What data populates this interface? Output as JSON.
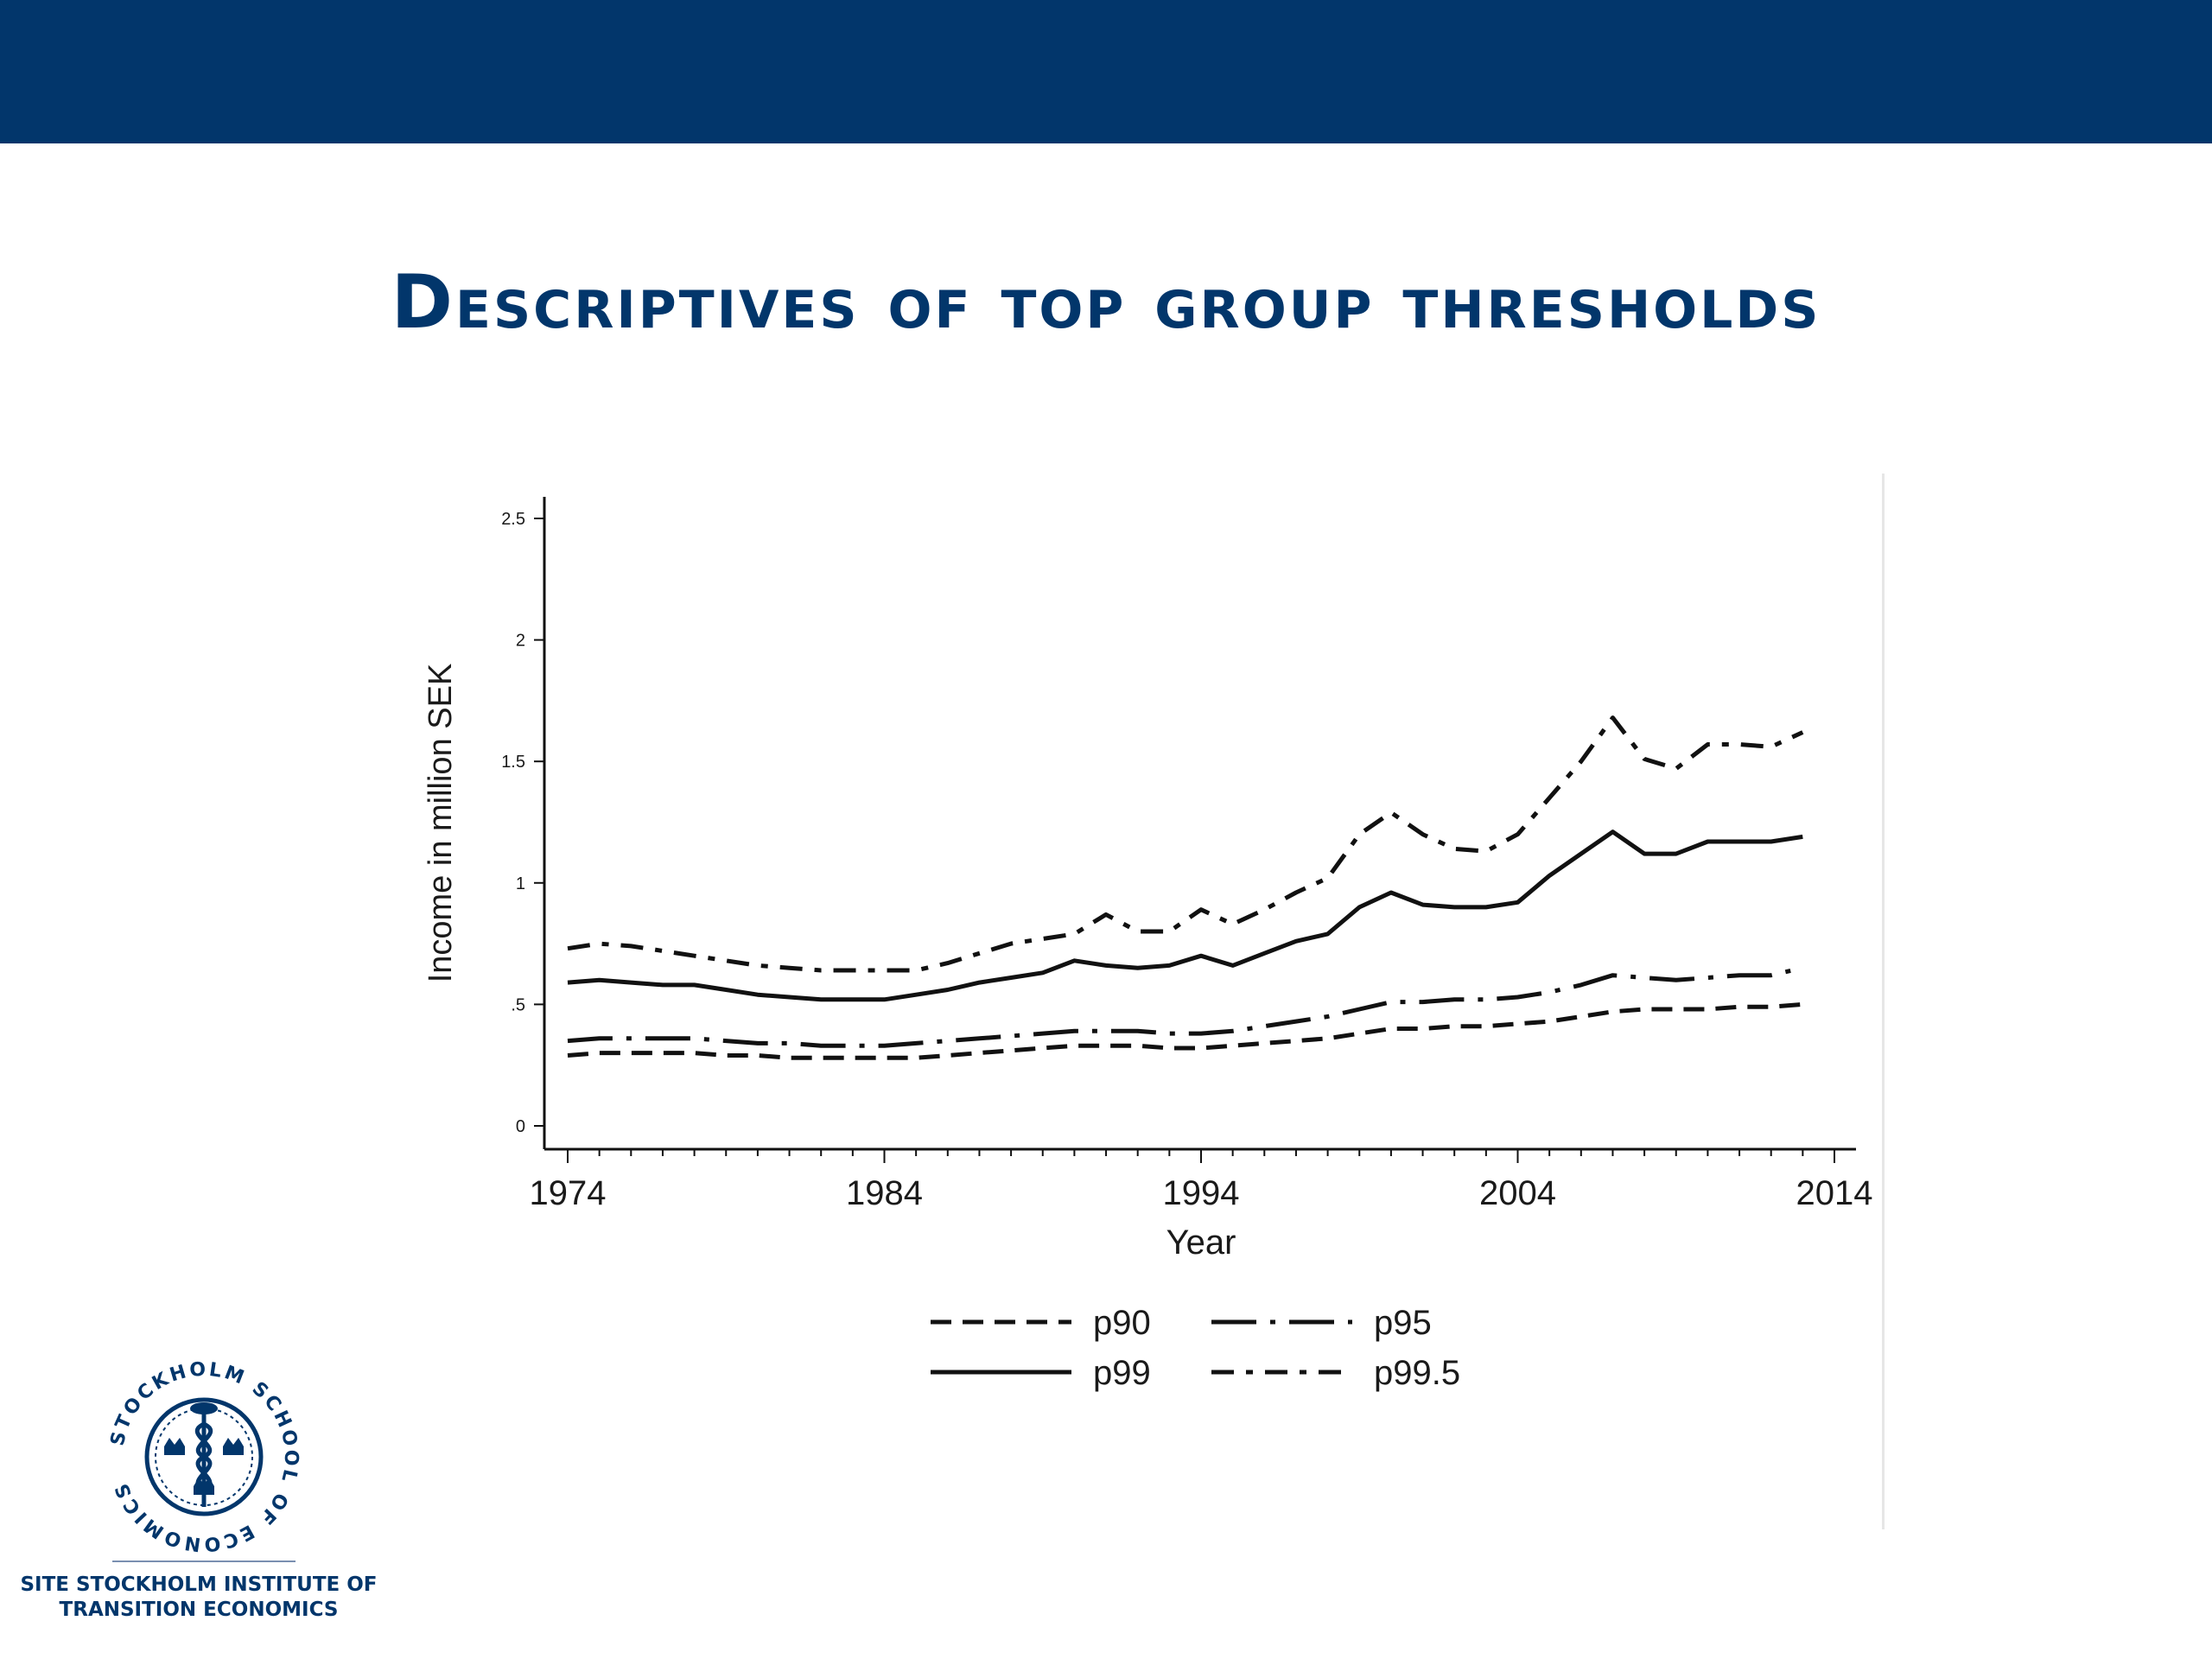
{
  "slide": {
    "title": "Descriptives of top group thresholds",
    "logo": {
      "seal_text": "STOCKHOLM SCHOOL OF ECONOMICS",
      "caption_line1": "SITE STOCKHOLM INSTITUTE OF",
      "caption_line2": "TRANSITION ECONOMICS"
    },
    "colors": {
      "bar": "#02366b",
      "title": "#02366b"
    }
  },
  "chart_data": {
    "type": "line",
    "xlabel": "Year",
    "ylabel": "Income in million SEK",
    "xlim": [
      1974,
      2014
    ],
    "ylim": [
      0,
      2.5
    ],
    "xticks": [
      1974,
      1984,
      1994,
      2004,
      2014
    ],
    "xtick_labels": [
      "1974",
      "1984",
      "1994",
      "2004",
      "2014"
    ],
    "yticks": [
      0,
      0.5,
      1,
      1.5,
      2,
      2.5
    ],
    "ytick_labels": [
      "0",
      ".5",
      "1",
      "1.5",
      "2",
      "2.5"
    ],
    "legend_position": "bottom",
    "x": [
      1974,
      1975,
      1976,
      1977,
      1978,
      1979,
      1980,
      1981,
      1982,
      1983,
      1984,
      1985,
      1986,
      1987,
      1988,
      1989,
      1990,
      1991,
      1992,
      1993,
      1994,
      1995,
      1996,
      1997,
      1998,
      1999,
      2000,
      2001,
      2002,
      2003,
      2004,
      2005,
      2006,
      2007,
      2008,
      2009,
      2010,
      2011,
      2012,
      2013
    ],
    "series": [
      {
        "name": "p90",
        "dash": "short",
        "values": [
          0.29,
          0.3,
          0.3,
          0.3,
          0.3,
          0.29,
          0.29,
          0.28,
          0.28,
          0.28,
          0.28,
          0.28,
          0.29,
          0.3,
          0.31,
          0.32,
          0.33,
          0.33,
          0.33,
          0.32,
          0.32,
          0.33,
          0.34,
          0.35,
          0.36,
          0.38,
          0.4,
          0.4,
          0.41,
          0.41,
          0.42,
          0.43,
          0.45,
          0.47,
          0.48,
          0.48,
          0.48,
          0.49,
          0.49,
          0.5
        ]
      },
      {
        "name": "p95",
        "dash": "longdot",
        "values": [
          0.35,
          0.36,
          0.36,
          0.36,
          0.36,
          0.35,
          0.34,
          0.34,
          0.33,
          0.33,
          0.33,
          0.34,
          0.35,
          0.36,
          0.37,
          0.38,
          0.39,
          0.39,
          0.39,
          0.38,
          0.38,
          0.39,
          0.41,
          0.43,
          0.45,
          0.48,
          0.51,
          0.51,
          0.52,
          0.52,
          0.53,
          0.55,
          0.58,
          0.62,
          0.61,
          0.6,
          0.61,
          0.62,
          0.62,
          0.65
        ]
      },
      {
        "name": "p99",
        "dash": "solid",
        "values": [
          0.59,
          0.6,
          0.59,
          0.58,
          0.58,
          0.56,
          0.54,
          0.53,
          0.52,
          0.52,
          0.52,
          0.54,
          0.56,
          0.59,
          0.61,
          0.63,
          0.68,
          0.66,
          0.65,
          0.66,
          0.7,
          0.66,
          0.71,
          0.76,
          0.79,
          0.9,
          0.96,
          0.91,
          0.9,
          0.9,
          0.92,
          1.03,
          1.12,
          1.21,
          1.12,
          1.12,
          1.17,
          1.17,
          1.17,
          1.19
        ]
      },
      {
        "name": "p99.5",
        "dash": "dashdot",
        "values": [
          0.73,
          0.75,
          0.74,
          0.72,
          0.7,
          0.68,
          0.66,
          0.65,
          0.64,
          0.64,
          0.64,
          0.64,
          0.67,
          0.71,
          0.75,
          0.77,
          0.79,
          0.87,
          0.8,
          0.8,
          0.89,
          0.83,
          0.89,
          0.96,
          1.02,
          1.2,
          1.29,
          1.2,
          1.14,
          1.13,
          1.2,
          1.35,
          1.5,
          1.68,
          1.51,
          1.47,
          1.57,
          1.57,
          1.56,
          1.62
        ]
      }
    ]
  }
}
